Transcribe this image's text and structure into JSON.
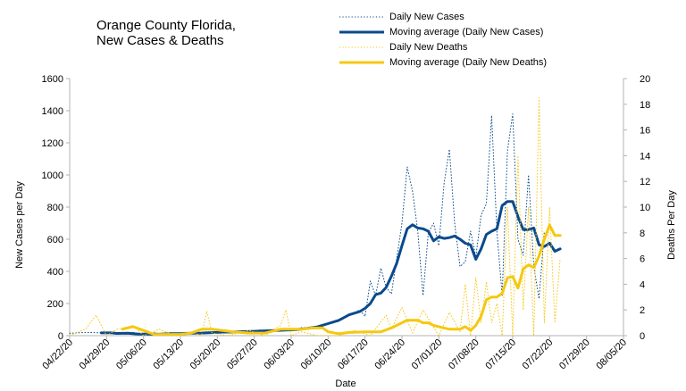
{
  "chart_data": {
    "type": "line",
    "title": "Orange County Florida, New Cases & Deaths",
    "title_lines": [
      "Orange County Florida,",
      "New Cases & Deaths"
    ],
    "xlabel": "Date",
    "ylabel": "New Cases per Day",
    "ylabel2": "Deaths Per Day",
    "x_ticks": [
      "04/22/20",
      "04/29/20",
      "05/06/20",
      "05/13/20",
      "05/20/20",
      "05/27/20",
      "06/03/20",
      "06/10/20",
      "06/17/20",
      "06/24/20",
      "07/01/20",
      "07/08/20",
      "07/15/20",
      "07/22/20",
      "07/29/20",
      "08/05/20"
    ],
    "y_ticks": [
      "0",
      "200",
      "400",
      "600",
      "800",
      "1000",
      "1200",
      "1400",
      "1600"
    ],
    "y2_ticks": [
      "0",
      "2",
      "4",
      "6",
      "8",
      "10",
      "12",
      "14",
      "16",
      "18",
      "20"
    ],
    "ylim": [
      0,
      1600
    ],
    "y2lim": [
      0,
      20
    ],
    "xlim": [
      "04/22/20",
      "08/05/20"
    ],
    "grid": false,
    "legend_position": "top-right",
    "series": [
      {
        "name": "Daily New Cases",
        "axis": "left",
        "style": "dotted",
        "color": "#0a4a8c",
        "points": [
          [
            "04/22/20",
            15
          ],
          [
            "04/25/20",
            20
          ],
          [
            "04/28/20",
            18
          ],
          [
            "04/30/20",
            22
          ],
          [
            "05/02/20",
            14
          ],
          [
            "05/04/20",
            20
          ],
          [
            "05/06/20",
            10
          ],
          [
            "05/08/20",
            18
          ],
          [
            "05/10/20",
            8
          ],
          [
            "05/12/20",
            12
          ],
          [
            "05/14/20",
            20
          ],
          [
            "05/16/20",
            10
          ],
          [
            "05/18/20",
            25
          ],
          [
            "05/20/20",
            15
          ],
          [
            "05/22/20",
            20
          ],
          [
            "05/24/20",
            28
          ],
          [
            "05/26/20",
            20
          ],
          [
            "05/28/20",
            35
          ],
          [
            "05/30/20",
            25
          ],
          [
            "06/01/20",
            40
          ],
          [
            "06/03/20",
            30
          ],
          [
            "06/05/20",
            50
          ],
          [
            "06/07/20",
            40
          ],
          [
            "06/09/20",
            70
          ],
          [
            "06/11/20",
            85
          ],
          [
            "06/13/20",
            110
          ],
          [
            "06/14/20",
            130
          ],
          [
            "06/16/20",
            160
          ],
          [
            "06/17/20",
            120
          ],
          [
            "06/18/20",
            340
          ],
          [
            "06/19/20",
            250
          ],
          [
            "06/20/20",
            420
          ],
          [
            "06/21/20",
            300
          ],
          [
            "06/22/20",
            260
          ],
          [
            "06/23/20",
            480
          ],
          [
            "06/24/20",
            700
          ],
          [
            "06/25/20",
            1050
          ],
          [
            "06/26/20",
            900
          ],
          [
            "06/27/20",
            650
          ],
          [
            "06/28/20",
            250
          ],
          [
            "06/29/20",
            640
          ],
          [
            "06/30/20",
            700
          ],
          [
            "07/01/20",
            560
          ],
          [
            "07/02/20",
            950
          ],
          [
            "07/03/20",
            1160
          ],
          [
            "07/04/20",
            700
          ],
          [
            "07/05/20",
            430
          ],
          [
            "07/06/20",
            460
          ],
          [
            "07/07/20",
            650
          ],
          [
            "07/08/20",
            490
          ],
          [
            "07/09/20",
            750
          ],
          [
            "07/10/20",
            820
          ],
          [
            "07/11/20",
            1370
          ],
          [
            "07/12/20",
            650
          ],
          [
            "07/13/20",
            250
          ],
          [
            "07/14/20",
            1150
          ],
          [
            "07/15/20",
            1380
          ],
          [
            "07/16/20",
            600
          ],
          [
            "07/17/20",
            500
          ],
          [
            "07/18/20",
            1000
          ],
          [
            "07/19/20",
            430
          ],
          [
            "07/20/20",
            230
          ],
          [
            "07/21/20",
            650
          ]
        ]
      },
      {
        "name": "Moving average (Daily New Cases)",
        "axis": "left",
        "style": "solid",
        "color": "#0a4a8c",
        "points": [
          [
            "04/28/20",
            17
          ],
          [
            "04/30/20",
            17
          ],
          [
            "05/01/20",
            14
          ],
          [
            "05/03/20",
            15
          ],
          [
            "05/05/20",
            10
          ],
          [
            "05/07/20",
            10
          ],
          [
            "05/09/20",
            9
          ],
          [
            "05/11/20",
            12
          ],
          [
            "05/13/20",
            13
          ],
          [
            "05/15/20",
            15
          ],
          [
            "05/17/20",
            16
          ],
          [
            "05/19/20",
            19
          ],
          [
            "05/21/20",
            22
          ],
          [
            "05/23/20",
            23
          ],
          [
            "05/25/20",
            25
          ],
          [
            "05/27/20",
            27
          ],
          [
            "05/29/20",
            30
          ],
          [
            "05/31/20",
            32
          ],
          [
            "06/02/20",
            35
          ],
          [
            "06/04/20",
            38
          ],
          [
            "06/06/20",
            45
          ],
          [
            "06/08/20",
            55
          ],
          [
            "06/10/20",
            75
          ],
          [
            "06/12/20",
            95
          ],
          [
            "06/14/20",
            130
          ],
          [
            "06/16/20",
            150
          ],
          [
            "06/17/20",
            170
          ],
          [
            "06/18/20",
            200
          ],
          [
            "06/19/20",
            255
          ],
          [
            "06/20/20",
            265
          ],
          [
            "06/21/20",
            300
          ],
          [
            "06/22/20",
            370
          ],
          [
            "06/23/20",
            450
          ],
          [
            "06/24/20",
            560
          ],
          [
            "06/25/20",
            665
          ],
          [
            "06/26/20",
            690
          ],
          [
            "06/27/20",
            670
          ],
          [
            "06/28/20",
            665
          ],
          [
            "06/29/20",
            650
          ],
          [
            "06/30/20",
            590
          ],
          [
            "07/01/20",
            615
          ],
          [
            "07/02/20",
            605
          ],
          [
            "07/03/20",
            610
          ],
          [
            "07/04/20",
            620
          ],
          [
            "07/05/20",
            600
          ],
          [
            "07/06/20",
            575
          ],
          [
            "07/07/20",
            565
          ],
          [
            "07/08/20",
            475
          ],
          [
            "07/09/20",
            540
          ],
          [
            "07/10/20",
            630
          ],
          [
            "07/11/20",
            650
          ],
          [
            "07/12/20",
            665
          ],
          [
            "07/13/20",
            810
          ],
          [
            "07/14/20",
            835
          ],
          [
            "07/15/20",
            835
          ],
          [
            "07/16/20",
            740
          ],
          [
            "07/17/20",
            660
          ],
          [
            "07/18/20",
            660
          ],
          [
            "07/19/20",
            670
          ],
          [
            "07/20/20",
            565
          ],
          [
            "07/21/20",
            555
          ],
          [
            "07/22/20",
            575
          ],
          [
            "07/23/20",
            525
          ],
          [
            "07/24/20",
            540
          ]
        ]
      },
      {
        "name": "Daily New Deaths",
        "axis": "right",
        "style": "dotted",
        "color": "#f5c811",
        "points": [
          [
            "04/22/20",
            0
          ],
          [
            "04/25/20",
            0.5
          ],
          [
            "04/27/20",
            1.6
          ],
          [
            "04/29/20",
            0
          ],
          [
            "05/01/20",
            0.5
          ],
          [
            "05/04/20",
            0.8
          ],
          [
            "05/06/20",
            0
          ],
          [
            "05/09/20",
            0.5
          ],
          [
            "05/12/20",
            0
          ],
          [
            "05/15/20",
            0.3
          ],
          [
            "05/17/20",
            0
          ],
          [
            "05/18/20",
            1.9
          ],
          [
            "05/19/20",
            0.2
          ],
          [
            "05/22/20",
            0
          ],
          [
            "05/26/20",
            0.4
          ],
          [
            "05/29/20",
            0
          ],
          [
            "06/01/20",
            0.8
          ],
          [
            "06/02/20",
            2
          ],
          [
            "06/03/20",
            0
          ],
          [
            "06/05/20",
            0.3
          ],
          [
            "06/08/20",
            0
          ],
          [
            "06/12/20",
            0
          ],
          [
            "06/15/20",
            0.4
          ],
          [
            "06/18/20",
            0
          ],
          [
            "06/21/20",
            1.6
          ],
          [
            "06/22/20",
            0.5
          ],
          [
            "06/24/20",
            2.2
          ],
          [
            "06/26/20",
            0.2
          ],
          [
            "06/28/20",
            2
          ],
          [
            "07/01/20",
            0
          ],
          [
            "07/03/20",
            1.8
          ],
          [
            "07/05/20",
            0.3
          ],
          [
            "07/06/20",
            4
          ],
          [
            "07/07/20",
            0
          ],
          [
            "07/08/20",
            4.5
          ],
          [
            "07/09/20",
            1
          ],
          [
            "07/10/20",
            4.2
          ],
          [
            "07/11/20",
            1
          ],
          [
            "07/12/20",
            2.5
          ],
          [
            "07/13/20",
            0
          ],
          [
            "07/14/20",
            10
          ],
          [
            "07/15/20",
            0
          ],
          [
            "07/16/20",
            14
          ],
          [
            "07/17/20",
            2
          ],
          [
            "07/18/20",
            10
          ],
          [
            "07/19/20",
            0
          ],
          [
            "07/20/20",
            18.5
          ],
          [
            "07/21/20",
            1
          ],
          [
            "07/22/20",
            10
          ],
          [
            "07/23/20",
            1
          ],
          [
            "07/24/20",
            6
          ]
        ]
      },
      {
        "name": "Moving average (Daily New Deaths)",
        "axis": "right",
        "style": "solid",
        "color": "#f5c811",
        "points": [
          [
            "05/02/20",
            0.5
          ],
          [
            "05/04/20",
            0.7
          ],
          [
            "05/06/20",
            0.4
          ],
          [
            "05/08/20",
            0.1
          ],
          [
            "05/10/20",
            0.1
          ],
          [
            "05/13/20",
            0.1
          ],
          [
            "05/15/20",
            0.2
          ],
          [
            "05/17/20",
            0.5
          ],
          [
            "05/19/20",
            0.5
          ],
          [
            "05/21/20",
            0.4
          ],
          [
            "05/23/20",
            0.3
          ],
          [
            "05/26/20",
            0.2
          ],
          [
            "05/29/20",
            0.2
          ],
          [
            "06/01/20",
            0.5
          ],
          [
            "06/03/20",
            0.5
          ],
          [
            "06/05/20",
            0.5
          ],
          [
            "06/07/20",
            0.6
          ],
          [
            "06/09/20",
            0.6
          ],
          [
            "06/10/20",
            0.3
          ],
          [
            "06/12/20",
            0.15
          ],
          [
            "06/14/20",
            0.25
          ],
          [
            "06/17/20",
            0.3
          ],
          [
            "06/20/20",
            0.3
          ],
          [
            "06/22/20",
            0.6
          ],
          [
            "06/24/20",
            1.0
          ],
          [
            "06/25/20",
            1.2
          ],
          [
            "06/27/20",
            1.2
          ],
          [
            "06/28/20",
            1.0
          ],
          [
            "06/29/20",
            1.0
          ],
          [
            "06/30/20",
            0.8
          ],
          [
            "07/02/20",
            0.6
          ],
          [
            "07/03/20",
            0.5
          ],
          [
            "07/05/20",
            0.5
          ],
          [
            "07/06/20",
            0.7
          ],
          [
            "07/07/20",
            0.4
          ],
          [
            "07/08/20",
            0.8
          ],
          [
            "07/09/20",
            1.5
          ],
          [
            "07/10/20",
            2.8
          ],
          [
            "07/11/20",
            3.0
          ],
          [
            "07/12/20",
            3.0
          ],
          [
            "07/13/20",
            3.3
          ],
          [
            "07/14/20",
            4.5
          ],
          [
            "07/15/20",
            4.6
          ],
          [
            "07/16/20",
            3.7
          ],
          [
            "07/17/20",
            5.2
          ],
          [
            "07/18/20",
            5.5
          ],
          [
            "07/19/20",
            5.3
          ],
          [
            "07/20/20",
            6.2
          ],
          [
            "07/21/20",
            7.5
          ],
          [
            "07/22/20",
            8.6
          ],
          [
            "07/23/20",
            7.8
          ],
          [
            "07/24/20",
            7.8
          ]
        ]
      }
    ]
  }
}
